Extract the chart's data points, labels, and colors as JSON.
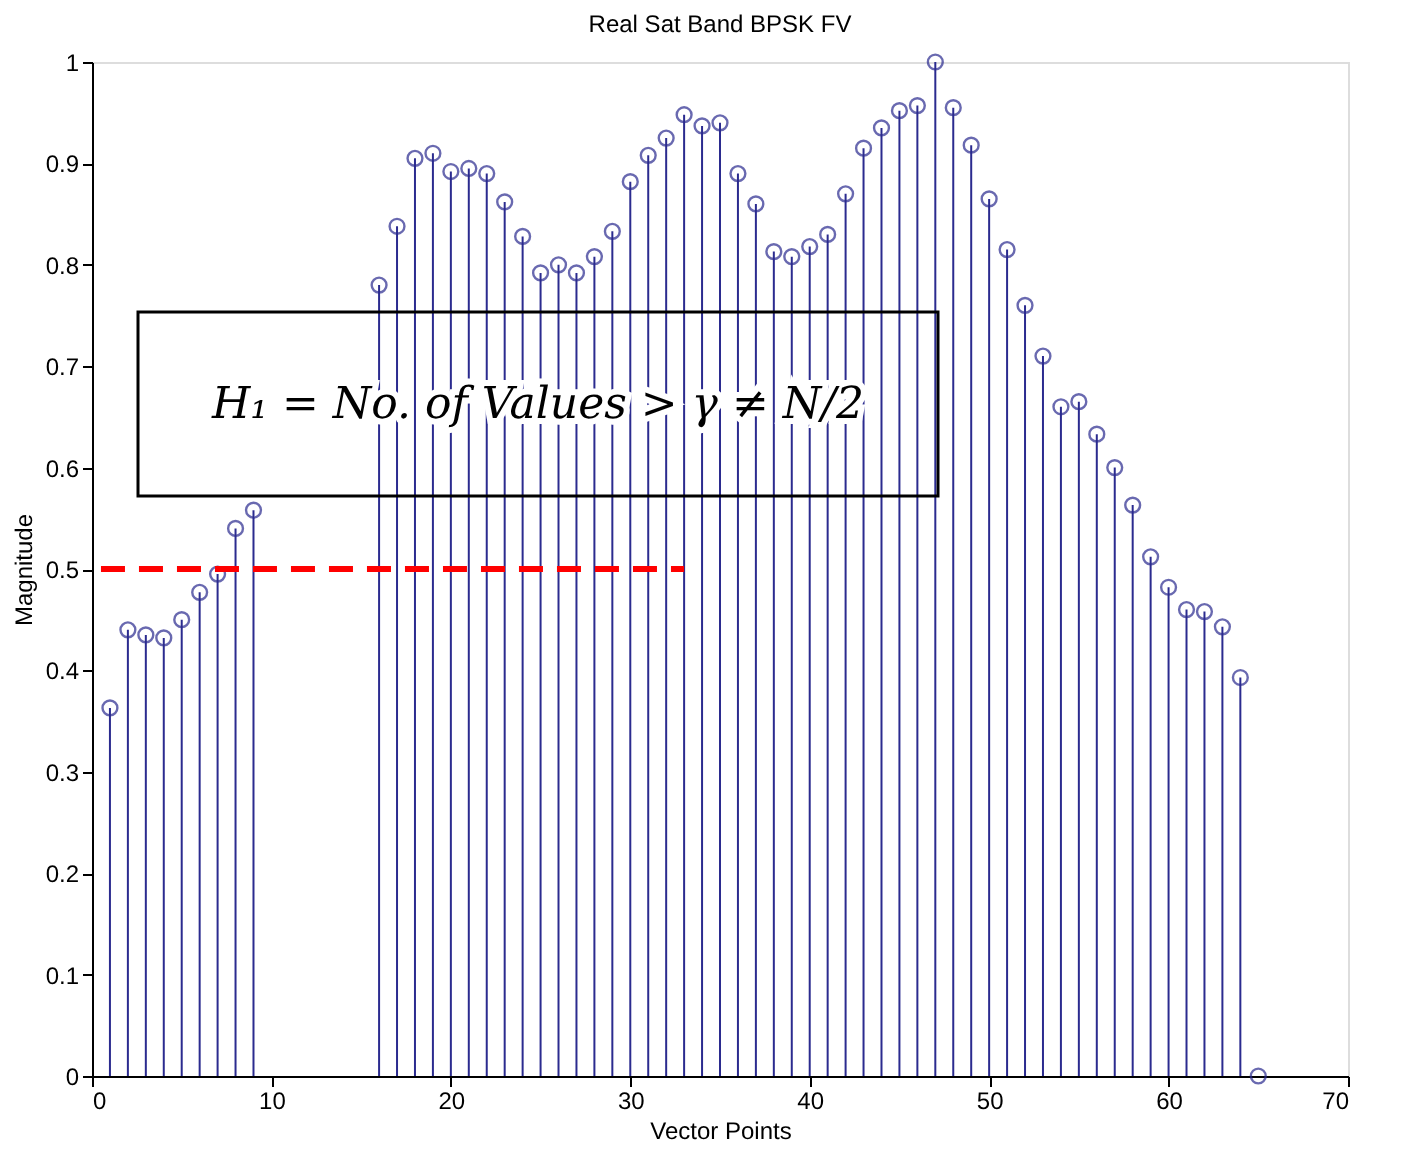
{
  "chart_data": {
    "type": "lollipop",
    "title": "Real Sat Band BPSK FV",
    "xlabel": "Vector Points",
    "ylabel": "Magnitude",
    "x": [
      1,
      2,
      3,
      4,
      5,
      6,
      7,
      8,
      9,
      10,
      11,
      12,
      13,
      14,
      15,
      16,
      17,
      18,
      19,
      20,
      21,
      22,
      23,
      24,
      25,
      26,
      27,
      28,
      29,
      30,
      31,
      32,
      33,
      34,
      35,
      36,
      37,
      38,
      39,
      40,
      41,
      42,
      43,
      44,
      45,
      46,
      47,
      48,
      49,
      50,
      51,
      52,
      53,
      54,
      55,
      56,
      57,
      58,
      59,
      60,
      61,
      62,
      63,
      64,
      65
    ],
    "series": [
      {
        "type": "lollipop",
        "color": "#2b2b8f",
        "marker": "circle",
        "values": [
          0.363,
          0.44,
          0.435,
          0.432,
          0.45,
          0.477,
          0.495,
          0.54,
          0.558,
          null,
          null,
          null,
          null,
          null,
          null,
          0.78,
          0.838,
          0.905,
          0.91,
          0.892,
          0.895,
          0.89,
          0.862,
          0.828,
          0.792,
          0.8,
          0.792,
          0.808,
          0.833,
          0.882,
          0.908,
          0.925,
          0.948,
          0.937,
          0.94,
          0.89,
          0.86,
          0.813,
          0.808,
          0.818,
          0.83,
          0.87,
          0.915,
          0.935,
          0.952,
          0.957,
          1.0,
          0.955,
          0.918,
          0.865,
          0.815,
          0.76,
          0.71,
          0.66,
          0.665,
          0.633,
          0.6,
          0.563,
          0.512,
          0.482,
          0.46,
          0.458,
          0.443,
          0.393,
          0.0
        ]
      },
      {
        "type": "line",
        "color": "#ff0000",
        "line_style": "dashed",
        "marker": "none",
        "x": [
          0.5,
          33
        ],
        "values": [
          0.5,
          0.5
        ]
      }
    ],
    "xlim": [
      0,
      70
    ],
    "xticks": [
      0,
      10,
      20,
      30,
      40,
      50,
      60,
      70
    ],
    "ylim": [
      0,
      1
    ],
    "yticks": [
      0,
      0.1,
      0.2,
      0.3,
      0.4,
      0.5,
      0.6,
      0.7,
      0.8,
      0.9,
      1
    ],
    "grid": false,
    "annotations": [
      "H₁ = No. of Values > γ ≠ N/2"
    ]
  }
}
